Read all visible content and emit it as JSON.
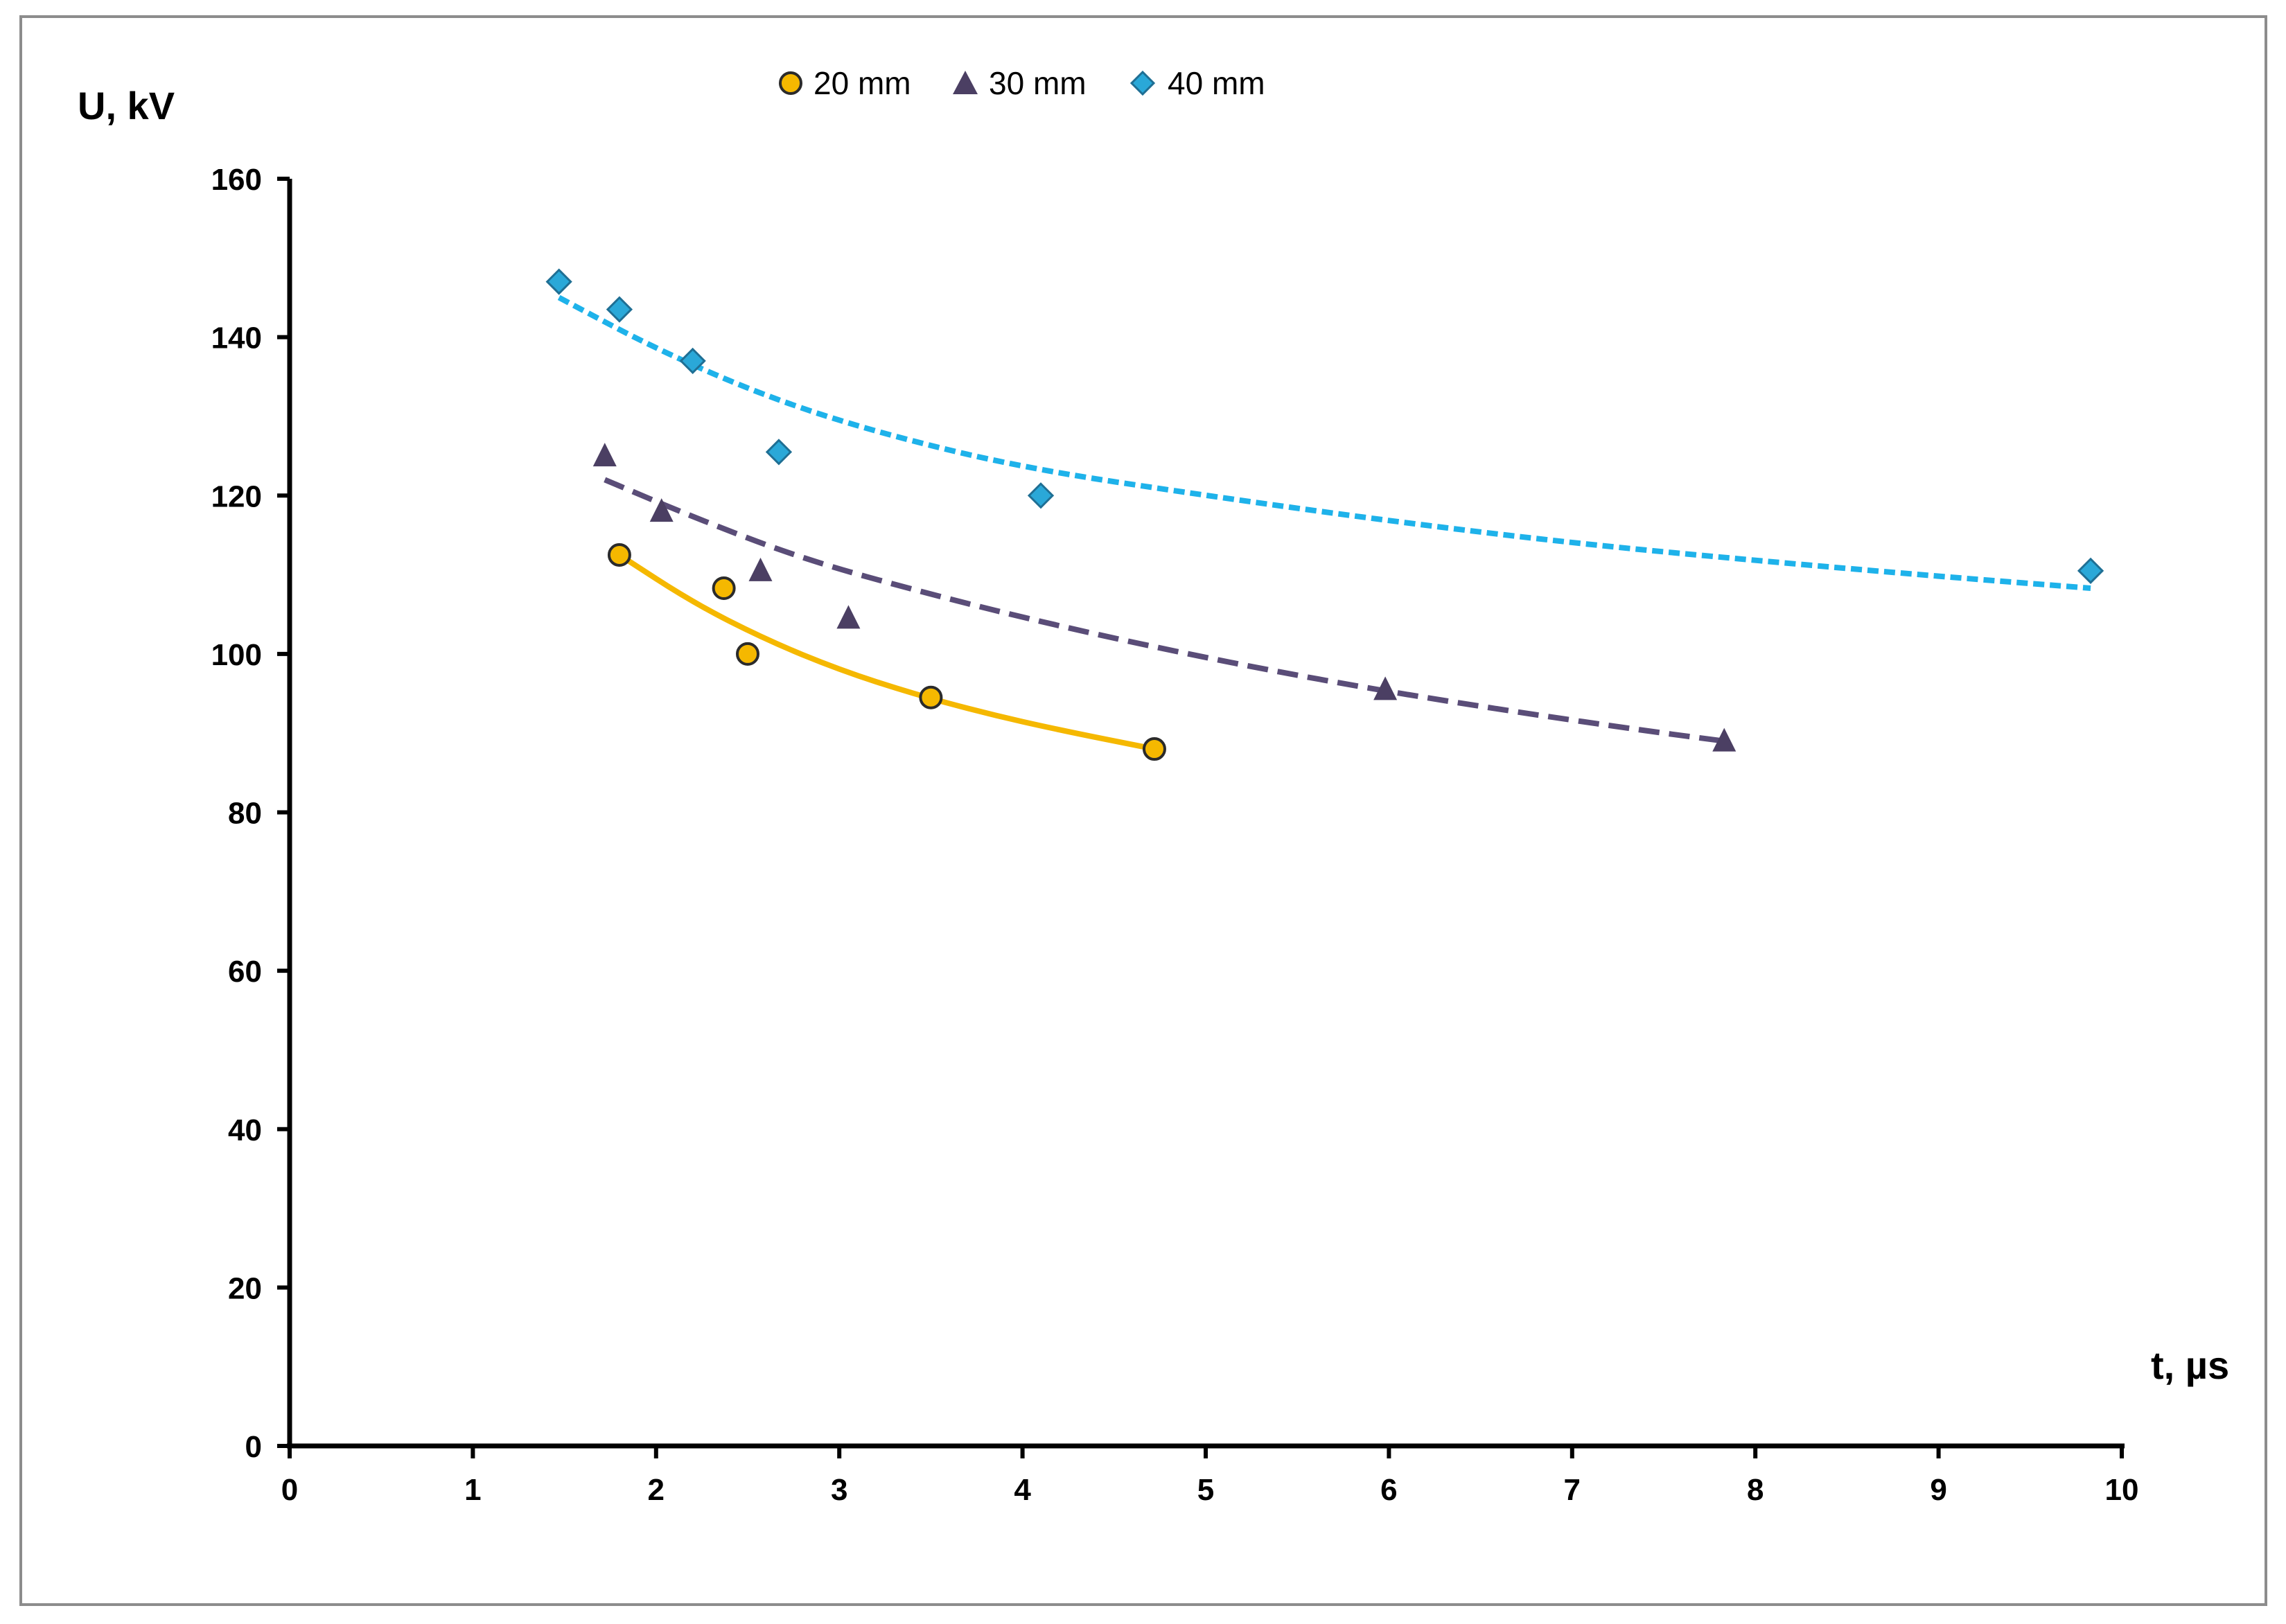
{
  "chart_data": {
    "type": "scatter",
    "title": "",
    "xlabel": "t, µs",
    "ylabel": "U, kV",
    "xlim": [
      0,
      10
    ],
    "ylim": [
      0,
      160
    ],
    "x_ticks": [
      "0",
      "1",
      "2",
      "3",
      "4",
      "5",
      "6",
      "7",
      "8",
      "9",
      "10"
    ],
    "y_ticks": [
      "0",
      "20",
      "40",
      "60",
      "80",
      "100",
      "120",
      "140",
      "160"
    ],
    "grid": false,
    "legend_position": "top-center",
    "series": [
      {
        "name": "20 mm",
        "marker": "circle",
        "color": "#F5B800",
        "trendline_color": "#F5B800",
        "trendline_style": "solid",
        "x": [
          1.8,
          2.37,
          2.5,
          3.5,
          4.72
        ],
        "y": [
          112.5,
          108.3,
          100.0,
          94.5,
          88.0
        ],
        "trendline": {
          "x": [
            1.8,
            2.2,
            2.6,
            3.0,
            3.4,
            3.8,
            4.2,
            4.72
          ],
          "y": [
            112.5,
            106.5,
            101.8,
            98.0,
            95.0,
            92.5,
            90.4,
            88.0
          ]
        }
      },
      {
        "name": "30 mm",
        "marker": "triangle",
        "color": "#4B3F63",
        "trendline_color": "#5A4D78",
        "trendline_style": "dashed",
        "x": [
          1.72,
          2.03,
          2.57,
          3.05,
          5.98,
          7.83
        ],
        "y": [
          125.0,
          118.0,
          110.5,
          104.5,
          95.5,
          89.0
        ],
        "trendline": {
          "x": [
            1.72,
            2.2,
            2.8,
            3.5,
            4.2,
            5.0,
            5.8,
            6.6,
            7.4,
            7.83
          ],
          "y": [
            122.0,
            117.3,
            112.0,
            107.5,
            103.5,
            99.5,
            96.0,
            93.0,
            90.3,
            89.0
          ]
        }
      },
      {
        "name": "40 mm",
        "marker": "diamond",
        "color": "#2AA8D8",
        "trendline_color": "#1EB2EA",
        "trendline_style": "dotted",
        "x": [
          1.47,
          1.8,
          2.2,
          2.67,
          4.1,
          9.83
        ],
        "y": [
          147.0,
          143.5,
          137.0,
          125.5,
          120.0,
          110.5
        ],
        "trendline": {
          "x": [
            1.47,
            2.0,
            2.6,
            3.2,
            4.0,
            5.0,
            6.0,
            7.0,
            8.0,
            9.0,
            9.83
          ],
          "y": [
            145.0,
            138.5,
            132.5,
            128.0,
            123.5,
            120.0,
            116.8,
            114.0,
            111.8,
            109.8,
            108.3
          ]
        }
      }
    ]
  }
}
